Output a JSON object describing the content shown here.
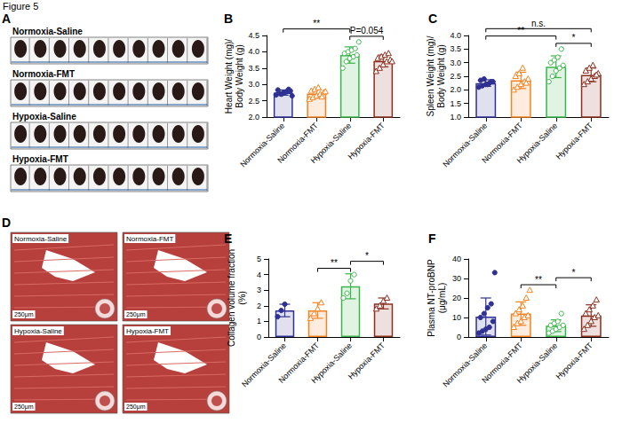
{
  "figure_title": "Figure 5",
  "panel_a": {
    "label": "A",
    "rows": [
      "Normoxia-Saline",
      "Normoxia-FMT",
      "Hypoxia-Saline",
      "Hypoxia-FMT"
    ],
    "samples": [
      10,
      10,
      10,
      10
    ]
  },
  "panel_d": {
    "label": "D",
    "images": [
      {
        "title": "Normoxia-Saline",
        "scale_bar": "250μm"
      },
      {
        "title": "Normoxia-FMT",
        "scale_bar": "250μm"
      },
      {
        "title": "Hypoxia-Saline",
        "scale_bar": "250μm"
      },
      {
        "title": "Hypoxia-FMT",
        "scale_bar": "250μm"
      }
    ]
  },
  "chart_data": [
    {
      "type": "bar",
      "panel": "B",
      "ylabel": "Heart Weight (mg)/\nBody Weight (g)",
      "categories": [
        "Normoxia-Saline",
        "Normoxia-FMT",
        "Hypoxia-Saline",
        "Hypoxia-FMT"
      ],
      "values": [
        2.75,
        2.72,
        3.9,
        3.72
      ],
      "errors": [
        0.08,
        0.12,
        0.25,
        0.18
      ],
      "points": [
        [
          2.68,
          2.72,
          2.75,
          2.78,
          2.8,
          2.83,
          2.7,
          2.76,
          2.85,
          2.65
        ],
        [
          2.55,
          2.6,
          2.65,
          2.7,
          2.75,
          2.8,
          2.85,
          2.9,
          2.62,
          2.78
        ],
        [
          3.5,
          3.7,
          3.8,
          3.85,
          3.9,
          3.95,
          4.0,
          4.05,
          4.1,
          4.3
        ],
        [
          3.4,
          3.5,
          3.6,
          3.7,
          3.75,
          3.8,
          3.85,
          3.9,
          3.95,
          3.7
        ]
      ],
      "colors": [
        "#2e3192",
        "#f58220",
        "#39b54a",
        "#8b2f1f"
      ],
      "ylim": [
        2,
        4.5
      ],
      "yticks": [
        {
          "value": 2,
          "label": "2.0"
        },
        {
          "value": 2.5,
          "label": "2.5"
        },
        {
          "value": 3,
          "label": "3.0"
        },
        {
          "value": 3.5,
          "label": "3.5"
        },
        {
          "value": 4,
          "label": "4.0"
        },
        {
          "value": 4.5,
          "label": "4.5"
        }
      ],
      "grid": false,
      "comparisons": [
        {
          "from": "Normoxia-Saline",
          "to": "Hypoxia-Saline",
          "label": "**"
        },
        {
          "from": "Hypoxia-Saline",
          "to": "Hypoxia-FMT",
          "label": "P=0.054"
        }
      ]
    },
    {
      "type": "bar",
      "panel": "C",
      "ylabel": "Spleen Weight (mg)/\nBody Weight (g)",
      "categories": [
        "Normoxia-Saline",
        "Normoxia-FMT",
        "Hypoxia-Saline",
        "Hypoxia-FMT"
      ],
      "values": [
        2.25,
        2.35,
        2.85,
        2.55
      ],
      "errors": [
        0.12,
        0.3,
        0.4,
        0.25
      ],
      "points": [
        [
          2.1,
          2.15,
          2.2,
          2.25,
          2.3,
          2.35,
          2.4,
          2.2,
          2.3
        ],
        [
          2.0,
          2.1,
          2.2,
          2.3,
          2.4,
          2.5,
          2.6,
          2.8,
          2.25
        ],
        [
          2.3,
          2.5,
          2.7,
          2.8,
          2.9,
          3.0,
          3.1,
          3.2,
          3.5
        ],
        [
          2.2,
          2.3,
          2.4,
          2.5,
          2.6,
          2.7,
          2.8,
          2.9,
          2.55
        ]
      ],
      "colors": [
        "#2e3192",
        "#f58220",
        "#39b54a",
        "#8b2f1f"
      ],
      "ylim": [
        1,
        4
      ],
      "yticks": [
        {
          "value": 1,
          "label": "1.0"
        },
        {
          "value": 1.5,
          "label": "1.5"
        },
        {
          "value": 2,
          "label": "2.0"
        },
        {
          "value": 2.5,
          "label": "2.5"
        },
        {
          "value": 3,
          "label": "3.0"
        },
        {
          "value": 3.5,
          "label": "3.5"
        },
        {
          "value": 4,
          "label": "4.0"
        }
      ],
      "grid": false,
      "comparisons": [
        {
          "from": "Normoxia-Saline",
          "to": "Hypoxia-FMT",
          "label": "n.s."
        },
        {
          "from": "Normoxia-Saline",
          "to": "Hypoxia-Saline",
          "label": "**"
        },
        {
          "from": "Hypoxia-Saline",
          "to": "Hypoxia-FMT",
          "label": "*"
        }
      ]
    },
    {
      "type": "bar",
      "panel": "E",
      "ylabel": "Collagen volume fraction\n(%)",
      "categories": [
        "Normoxia-Saline",
        "Normoxia-FMT",
        "Hypoxia-Saline",
        "Hypoxia-FMT"
      ],
      "values": [
        1.7,
        1.7,
        3.25,
        2.15
      ],
      "errors": [
        0.4,
        0.5,
        0.8,
        0.35
      ],
      "points": [
        [
          1.3,
          1.7,
          2.1
        ],
        [
          1.2,
          1.5,
          1.8,
          2.2
        ],
        [
          2.5,
          2.8,
          3.6,
          4.0
        ],
        [
          1.8,
          2.0,
          2.3,
          2.5
        ]
      ],
      "colors": [
        "#2e3192",
        "#f58220",
        "#39b54a",
        "#8b2f1f"
      ],
      "ylim": [
        0,
        5
      ],
      "yticks": [
        0,
        1,
        2,
        3,
        4,
        5
      ],
      "grid": false,
      "comparisons": [
        {
          "from": "Normoxia-FMT",
          "to": "Hypoxia-Saline",
          "label": "**"
        },
        {
          "from": "Hypoxia-Saline",
          "to": "Hypoxia-FMT",
          "label": "*"
        }
      ]
    },
    {
      "type": "bar",
      "panel": "F",
      "ylabel": "Plasma NT-proBNP\n(μg/mL)",
      "categories": [
        "Normoxia-Saline",
        "Normoxia-FMT",
        "Hypoxia-Saline",
        "Hypoxia-FMT"
      ],
      "values": [
        10.5,
        12,
        5.8,
        11
      ],
      "errors": [
        9.5,
        6,
        3,
        5.5
      ],
      "points": [
        [
          2,
          3,
          4,
          5,
          8,
          10,
          12,
          15,
          17,
          33
        ],
        [
          5,
          7,
          8,
          10,
          11,
          12,
          14,
          16,
          20,
          24
        ],
        [
          2,
          3,
          4,
          5,
          6,
          6,
          7,
          8,
          12
        ],
        [
          4,
          6,
          8,
          10,
          11,
          12,
          14,
          16,
          19
        ]
      ],
      "colors": [
        "#2e3192",
        "#f58220",
        "#39b54a",
        "#8b2f1f"
      ],
      "ylim": [
        0,
        40
      ],
      "yticks": [
        0,
        10,
        20,
        30,
        40
      ],
      "grid": false,
      "comparisons": [
        {
          "from": "Normoxia-FMT",
          "to": "Hypoxia-Saline",
          "label": "**"
        },
        {
          "from": "Hypoxia-Saline",
          "to": "Hypoxia-FMT",
          "label": "*"
        }
      ]
    }
  ]
}
